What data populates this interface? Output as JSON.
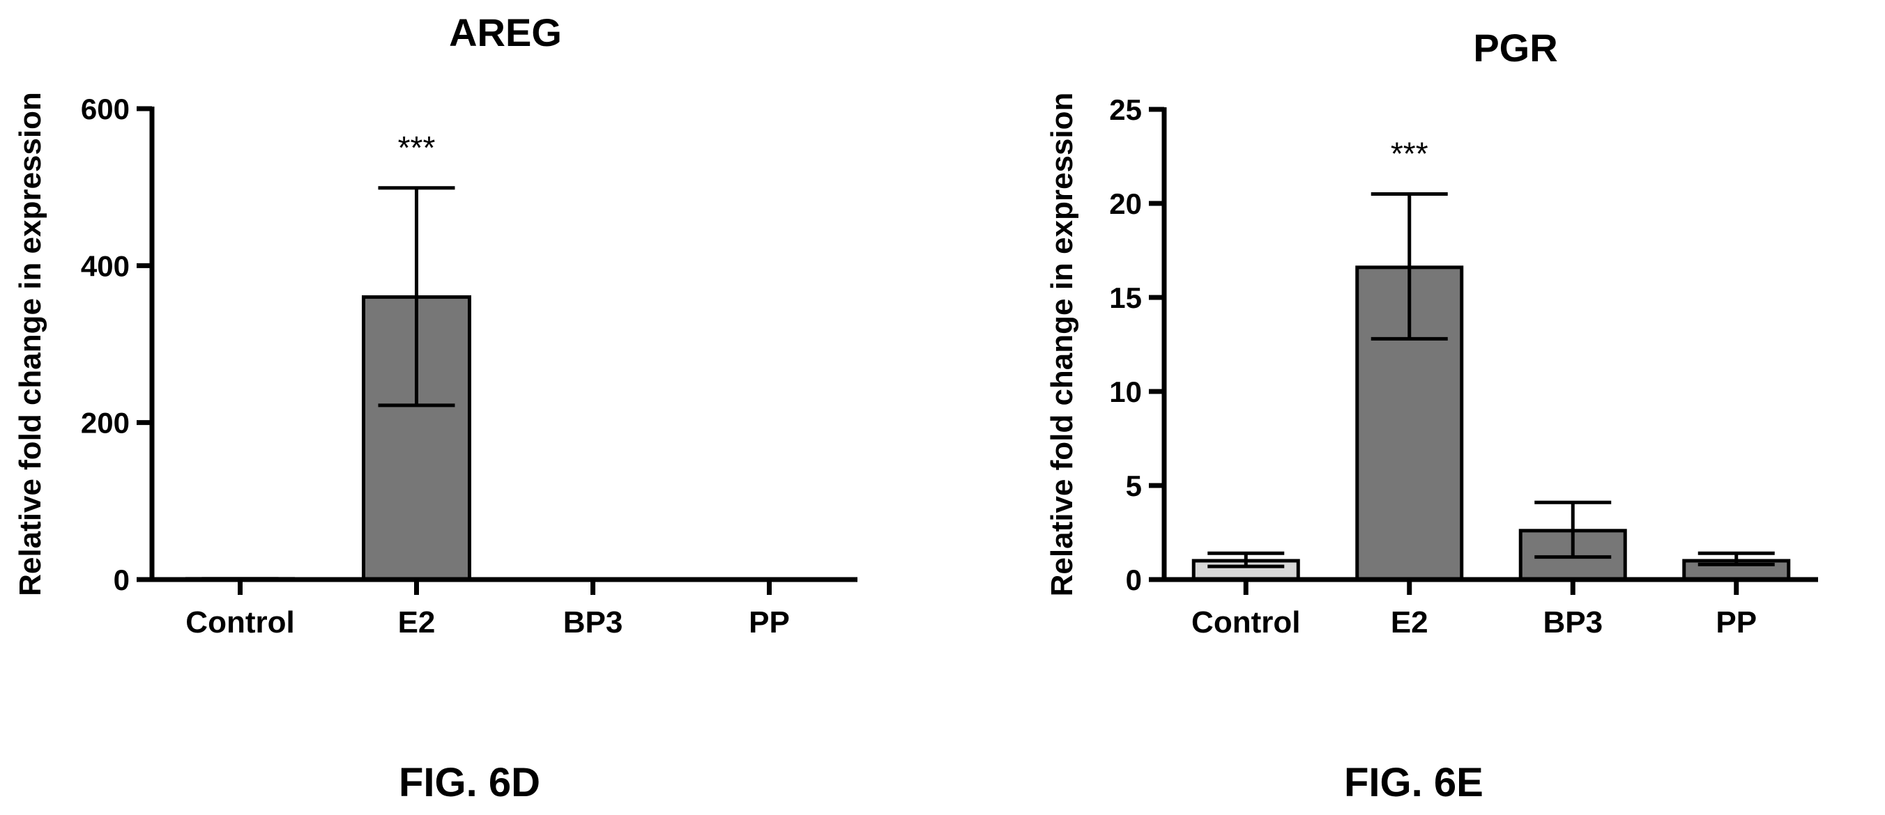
{
  "chart_data": [
    {
      "type": "bar",
      "title": "AREG",
      "ylabel": "Relative fold change in expression",
      "xlabel": "",
      "categories": [
        "Control",
        "E2",
        "BP3",
        "PP"
      ],
      "values": [
        1,
        360,
        0,
        0
      ],
      "error_bars": [
        [
          0,
          1
        ],
        [
          222,
          499
        ],
        [
          0,
          0
        ],
        [
          0,
          0
        ]
      ],
      "annotations": [
        {
          "category": "E2",
          "text": "***"
        }
      ],
      "ylim": [
        0,
        600
      ],
      "yticks": [
        0,
        200,
        400,
        600
      ],
      "bar_colors": [
        "#d8d8d8",
        "#777777",
        "#777777",
        "#777777"
      ],
      "grid": false,
      "caption": "FIG. 6D"
    },
    {
      "type": "bar",
      "title": "PGR",
      "ylabel": "Relative fold change in expression",
      "xlabel": "",
      "categories": [
        "Control",
        "E2",
        "BP3",
        "PP"
      ],
      "values": [
        1.0,
        16.6,
        2.6,
        1.0
      ],
      "error_bars": [
        [
          0.7,
          1.4
        ],
        [
          12.8,
          20.5
        ],
        [
          1.2,
          4.1
        ],
        [
          0.8,
          1.4
        ]
      ],
      "annotations": [
        {
          "category": "E2",
          "text": "***"
        }
      ],
      "ylim": [
        0,
        25
      ],
      "yticks": [
        0,
        5,
        10,
        15,
        20,
        25
      ],
      "bar_colors": [
        "#d8d8d8",
        "#777777",
        "#777777",
        "#777777"
      ],
      "grid": false,
      "caption": "FIG. 6E"
    }
  ]
}
